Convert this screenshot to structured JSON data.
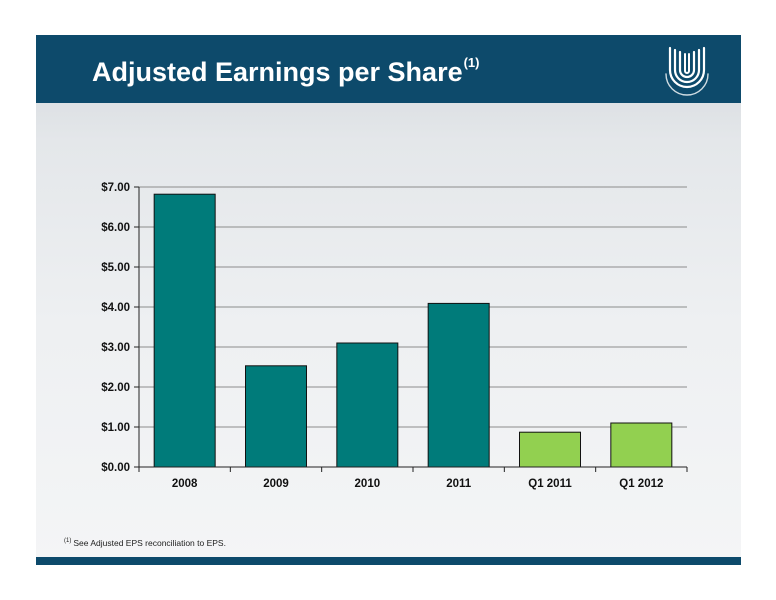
{
  "slide": {
    "title": "Adjusted Earnings per Share",
    "title_footnote_marker": "(1)",
    "footnote_marker": "(1)",
    "footnote_text": "See Adjusted EPS reconciliation to EPS.",
    "logo_icon": "company-logo-icon"
  },
  "colors": {
    "header": "#0d4a6b",
    "bar_annual": "#007b7a",
    "bar_quarterly": "#92d050"
  },
  "chart_data": {
    "type": "bar",
    "categories": [
      "2008",
      "2009",
      "2010",
      "2011",
      "Q1 2011",
      "Q1 2012"
    ],
    "values": [
      6.82,
      2.53,
      3.1,
      4.09,
      0.87,
      1.1
    ],
    "bar_colors": [
      "#007b7a",
      "#007b7a",
      "#007b7a",
      "#007b7a",
      "#92d050",
      "#92d050"
    ],
    "yticks": [
      "$0.00",
      "$1.00",
      "$2.00",
      "$3.00",
      "$4.00",
      "$5.00",
      "$6.00",
      "$7.00"
    ],
    "ylim": [
      0,
      7
    ],
    "xlabel": "",
    "ylabel": "",
    "grid": true,
    "legend": false
  }
}
